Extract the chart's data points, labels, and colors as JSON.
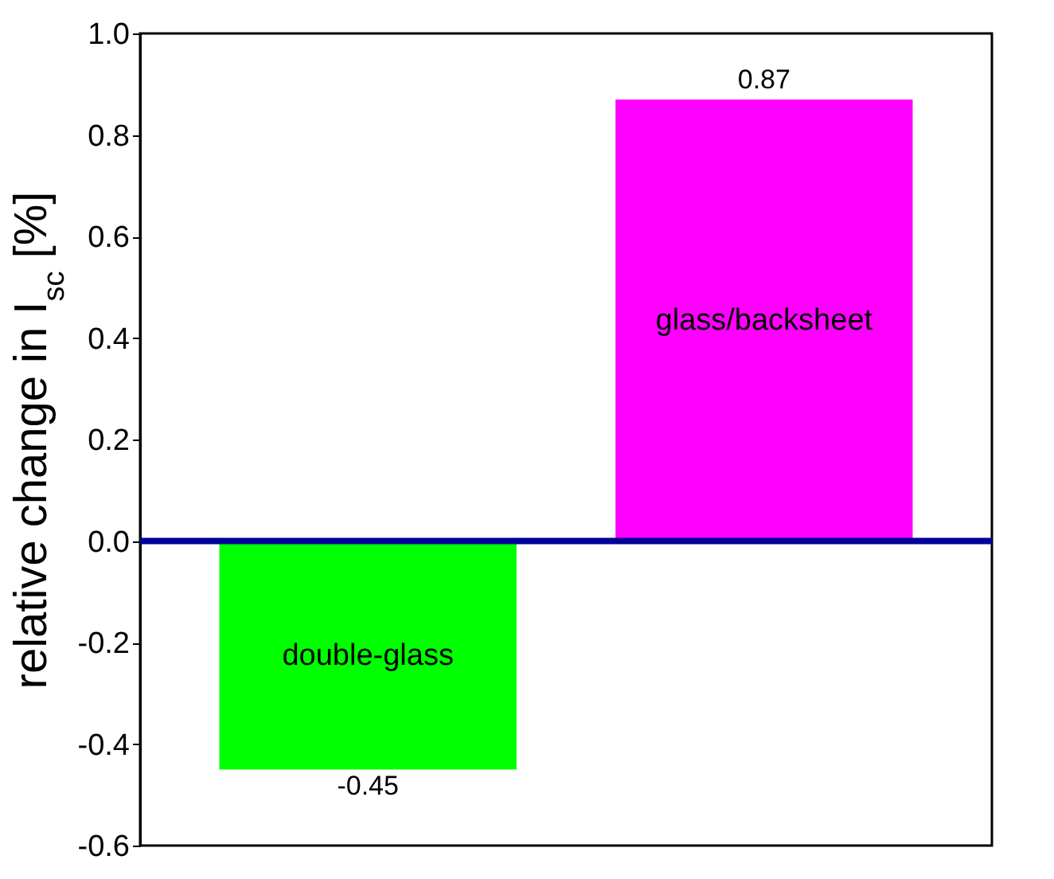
{
  "chart_data": {
    "type": "bar",
    "ylabel": "relative change in I$_{sc}$ [%]",
    "categories": [
      "double-glass",
      "glass/backsheet"
    ],
    "values": [
      -0.45,
      0.87
    ],
    "colors": [
      "#00ff00",
      "#ff00ff"
    ],
    "data_labels": true,
    "ylim": [
      -0.6,
      1.0
    ],
    "yticks": [
      -0.6,
      -0.4,
      -0.2,
      {
        "value": 0,
        "label": "0.0"
      },
      0.2,
      0.4,
      0.6,
      0.8,
      {
        "value": 1,
        "label": "1.0"
      }
    ],
    "ref_lines": [
      {
        "axis": "y",
        "value": 0,
        "color": "#000099"
      }
    ],
    "tick_labels": "y",
    "grid": false,
    "legend": false
  }
}
